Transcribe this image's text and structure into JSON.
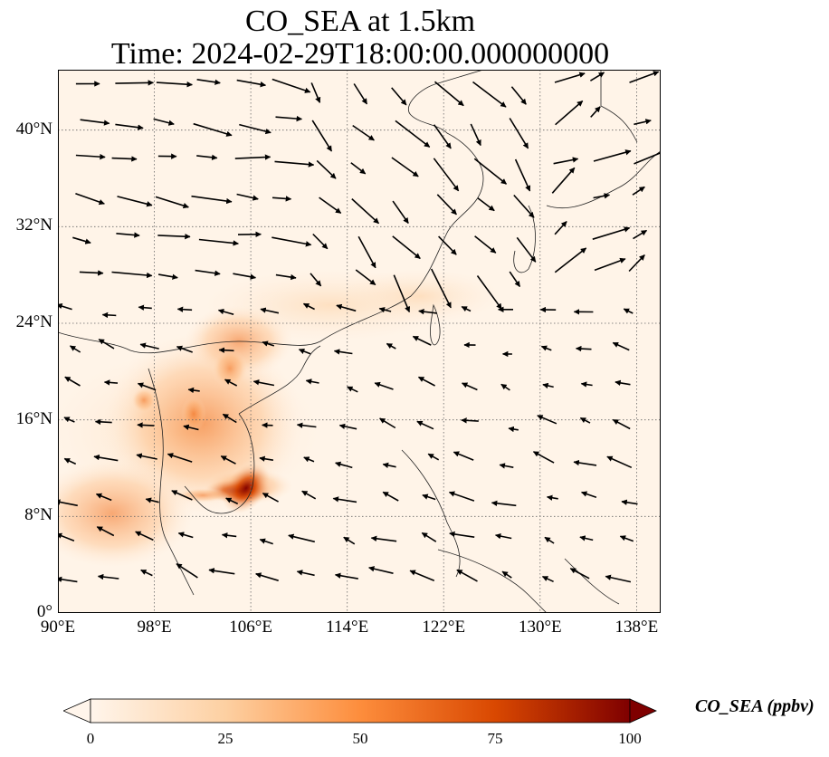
{
  "title_line1": "CO_SEA at 1.5km",
  "title_line2": "Time: 2024-02-29T18:00:00.000000000",
  "map": {
    "lon_range": [
      90,
      140
    ],
    "lat_range": [
      0,
      45
    ],
    "x_ticks": [
      "90°E",
      "98°E",
      "106°E",
      "114°E",
      "122°E",
      "130°E",
      "138°E"
    ],
    "y_ticks": [
      "0°",
      "8°N",
      "16°N",
      "24°N",
      "32°N",
      "40°N"
    ],
    "gridlines": true,
    "wind_vectors_shown": true
  },
  "colorbar": {
    "label": "CO_SEA (ppbv)",
    "ticks": [
      "0",
      "25",
      "50",
      "75",
      "100"
    ],
    "range": [
      0,
      100
    ],
    "colormap": [
      "#fff5eb",
      "#fdd0a2",
      "#fd8d3c",
      "#d94801",
      "#7f0000"
    ],
    "extend": "both"
  }
}
